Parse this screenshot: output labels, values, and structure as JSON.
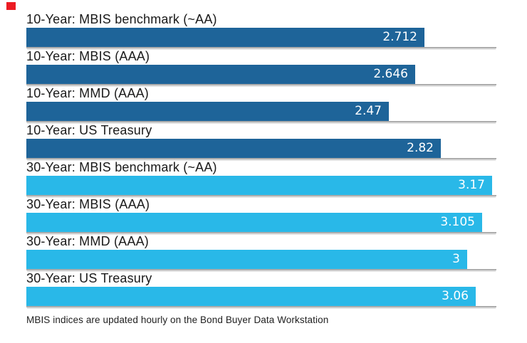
{
  "marker": {
    "color": "#ec1b23"
  },
  "colors": {
    "ten_year_bar": "#1e6499",
    "thirty_year_bar": "#29b8e8",
    "baseline": "#adadad",
    "label_text": "#1a1a1a",
    "value_text": "#ffffff",
    "background": "#ffffff"
  },
  "chart_data": {
    "type": "bar",
    "orientation": "horizontal",
    "title": "",
    "xlabel": "",
    "ylabel": "",
    "xlim": [
      0,
      3.2
    ],
    "grid": "per-row baseline under each bar",
    "legend": "none",
    "categories": [
      "10-Year: MBIS benchmark (~AA)",
      "10-Year: MBIS (AAA)",
      "10-Year: MMD (AAA)",
      "10-Year: US Treasury",
      "30-Year: MBIS benchmark (~AA)",
      "30-Year: MBIS (AAA)",
      "30-Year: MMD (AAA)",
      "30-Year: US Treasury"
    ],
    "values": [
      2.712,
      2.646,
      2.47,
      2.82,
      3.17,
      3.105,
      3,
      3.06
    ],
    "value_labels": [
      "2.712",
      "2.646",
      "2.47",
      "2.82",
      "3.17",
      "3.105",
      "3",
      "3.06"
    ],
    "series": [
      {
        "name": "10-Year",
        "color": "#1e6499",
        "row_indices": [
          0,
          1,
          2,
          3
        ]
      },
      {
        "name": "30-Year",
        "color": "#29b8e8",
        "row_indices": [
          4,
          5,
          6,
          7
        ]
      }
    ],
    "footnote": "MBIS indices are updated hourly on the Bond Buyer Data Workstation"
  }
}
